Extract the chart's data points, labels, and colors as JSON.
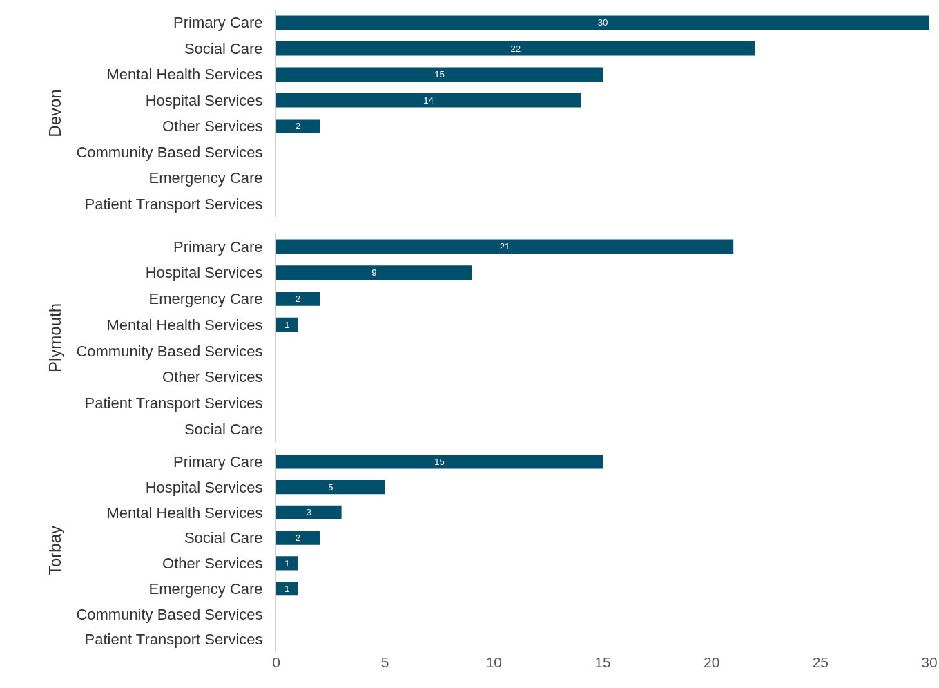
{
  "chart_data": [
    {
      "type": "bar",
      "orientation": "horizontal",
      "ylabel": "Devon",
      "categories": [
        "Primary Care",
        "Social Care",
        "Mental Health Services",
        "Hospital Services",
        "Other Services",
        "Community Based Services",
        "Emergency Care",
        "Patient Transport Services"
      ],
      "values": [
        30,
        22,
        15,
        14,
        2,
        null,
        null,
        null
      ],
      "color": "#004f6b",
      "data_labels": true,
      "xlim": [
        0,
        30
      ],
      "xticks": [
        0,
        5,
        10,
        15,
        20,
        25,
        30
      ],
      "tick_labels": "y",
      "grid": false
    },
    {
      "type": "bar",
      "orientation": "horizontal",
      "ylabel": "Plymouth",
      "categories": [
        "Primary Care",
        "Hospital Services",
        "Emergency Care",
        "Mental Health Services",
        "Community Based Services",
        "Other Services",
        "Patient Transport Services",
        "Social Care"
      ],
      "values": [
        21,
        9,
        2,
        1,
        null,
        null,
        null,
        null
      ],
      "color": "#004f6b",
      "data_labels": true,
      "xlim": [
        0,
        30
      ],
      "xticks": [
        0,
        5,
        10,
        15,
        20,
        25,
        30
      ],
      "tick_labels": "y",
      "grid": false
    },
    {
      "type": "bar",
      "orientation": "horizontal",
      "ylabel": "Torbay",
      "categories": [
        "Primary Care",
        "Hospital Services",
        "Mental Health Services",
        "Social Care",
        "Other Services",
        "Emergency Care",
        "Community Based Services",
        "Patient Transport Services"
      ],
      "values": [
        15,
        5,
        3,
        2,
        1,
        1,
        null,
        null
      ],
      "color": "#004f6b",
      "data_labels": true,
      "xlim": [
        0,
        30
      ],
      "xticks": [
        0,
        5,
        10,
        15,
        20,
        25,
        30
      ],
      "grid": false
    }
  ]
}
